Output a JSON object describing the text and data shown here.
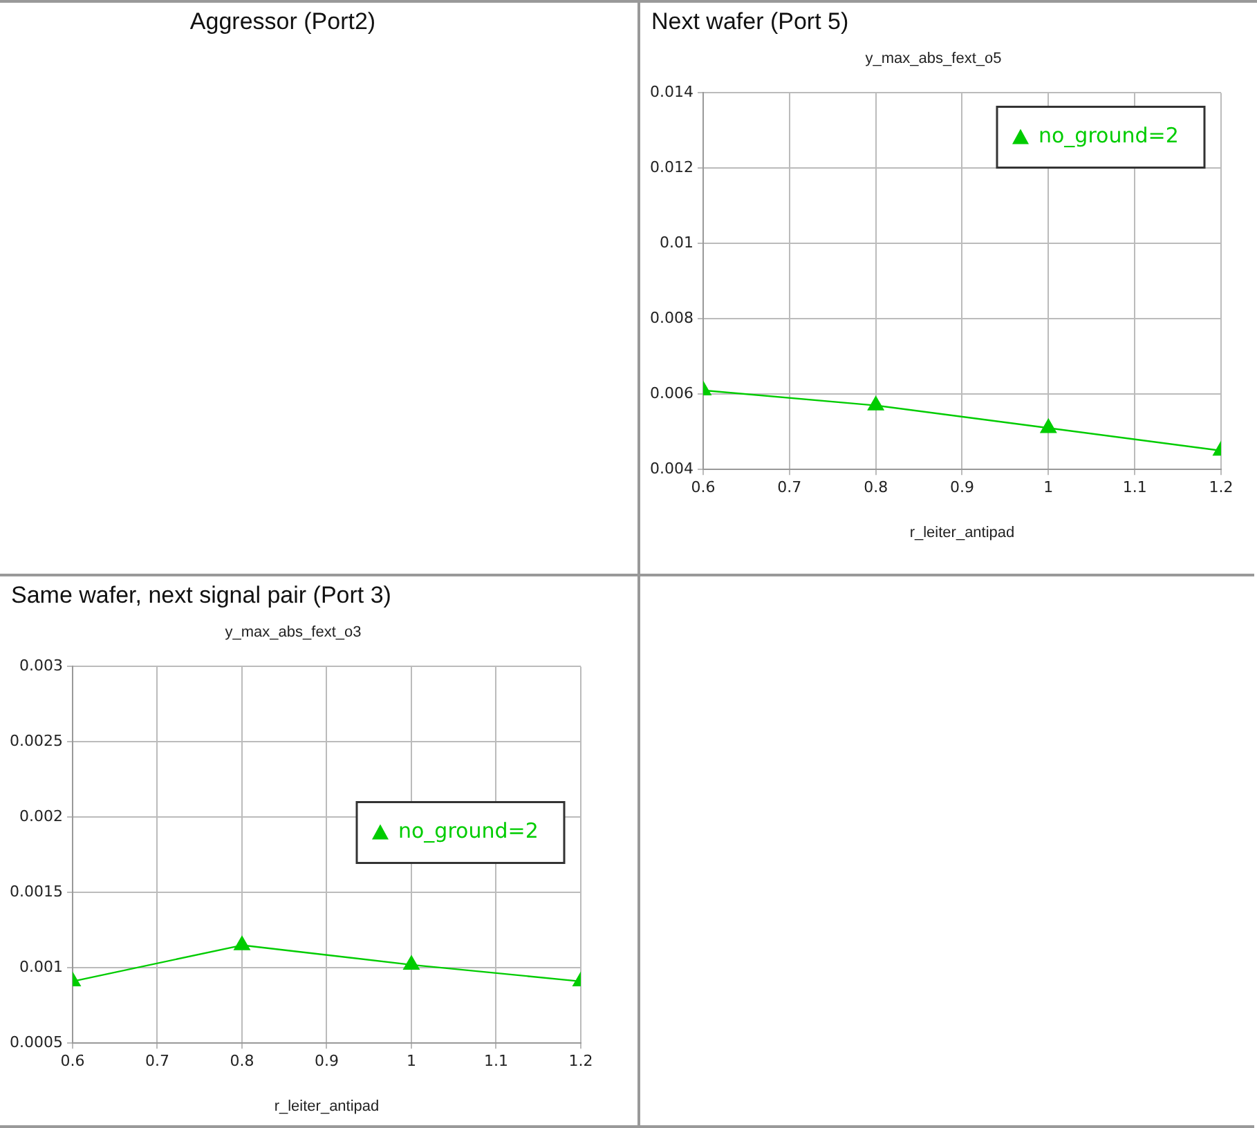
{
  "chart_data": [
    {
      "type": "other",
      "title": "Aggressor (Port2)"
    },
    {
      "type": "line",
      "title": "Next wafer (Port 5)",
      "subtitle": "y_max_abs_fext_o5",
      "xlabel": "r_leiter_antipad",
      "x": [
        0.6,
        0.8,
        1,
        1.2
      ],
      "series": [
        {
          "name": "no_ground=2",
          "color": "#00cc00",
          "values": [
            0.0061,
            0.0057,
            0.0051,
            0.0045
          ]
        }
      ],
      "xlim": [
        0.6,
        1.2
      ],
      "xticks": [
        0.6,
        0.7,
        0.8,
        0.9,
        1,
        1.1,
        1.2
      ],
      "ylim": [
        0.004,
        0.014
      ],
      "yticks": [
        0.004,
        0.006,
        0.008,
        0.01,
        0.012,
        0.014
      ],
      "grid": true,
      "legend": "top right",
      "marker": "triangle",
      "line_style": "solid"
    },
    {
      "type": "line",
      "title": "Same wafer, next signal pair (Port 3)",
      "subtitle": "y_max_abs_fext_o3",
      "xlabel": "r_leiter_antipad",
      "x": [
        0.6,
        0.8,
        1,
        1.2
      ],
      "series": [
        {
          "name": "no_ground=2",
          "color": "#00cc00",
          "values": [
            0.00091,
            0.00115,
            0.00102,
            0.00091
          ]
        }
      ],
      "xlim": [
        0.6,
        1.2
      ],
      "xticks": [
        0.6,
        0.7,
        0.8,
        0.9,
        1,
        1.1,
        1.2
      ],
      "ylim": [
        0.0005,
        0.003
      ],
      "yticks": [
        0.0005,
        0.001,
        0.0015,
        0.002,
        0.0025,
        0.003
      ],
      "grid": true,
      "legend": "right",
      "marker": "triangle",
      "line_style": "solid"
    }
  ]
}
